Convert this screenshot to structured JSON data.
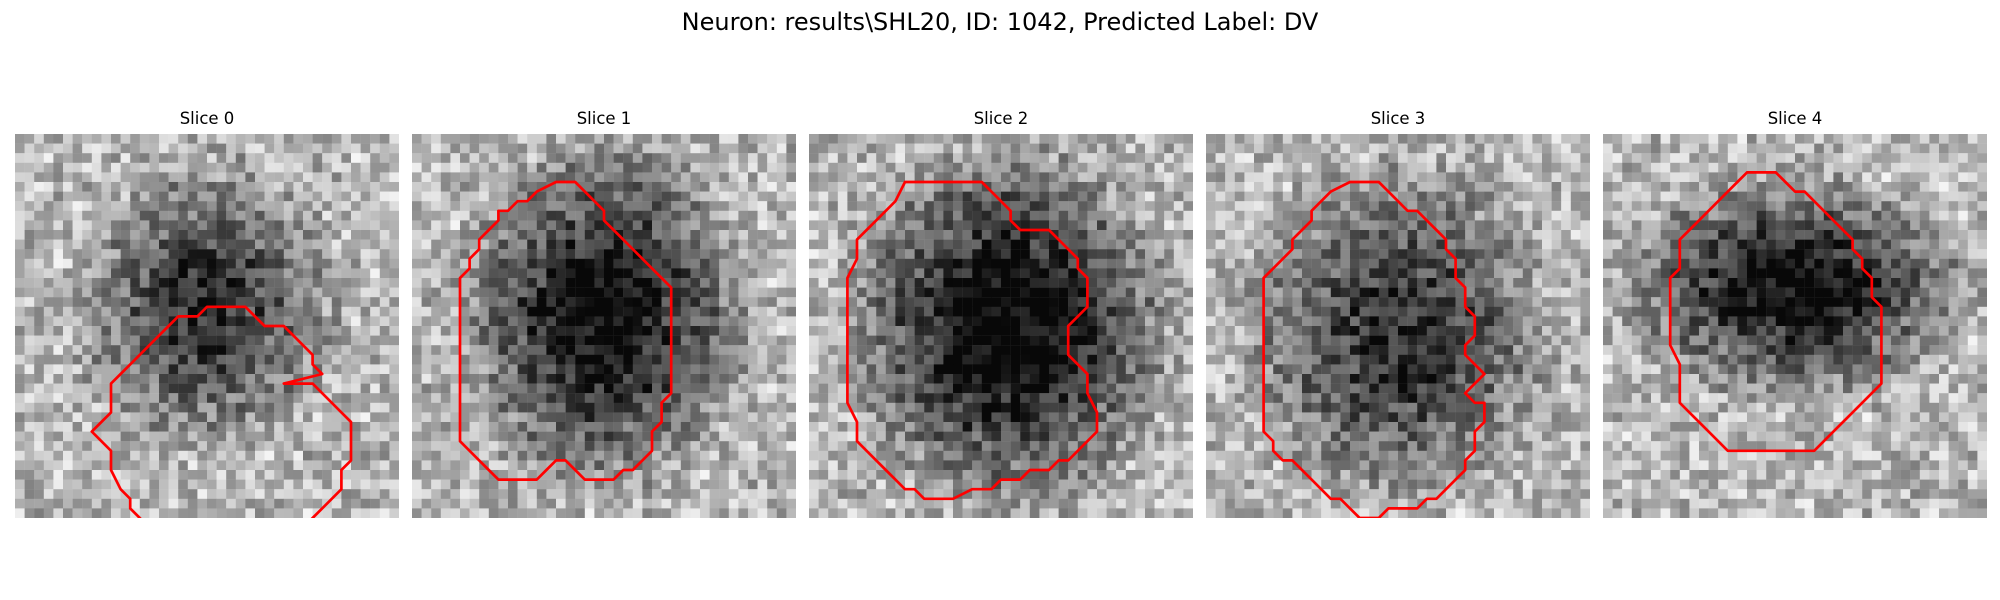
{
  "figure": {
    "title": "Neuron: results\\SHL20, ID: 1042, Predicted Label: DV"
  },
  "panels": [
    {
      "title": "Slice 0",
      "seed": 11,
      "blob": [
        0.5,
        0.45,
        0.3,
        0.34
      ],
      "darkness": 0.55,
      "contour": [
        [
          28,
          26
        ],
        [
          31,
          26
        ],
        [
          32,
          27
        ],
        [
          33,
          28
        ],
        [
          34,
          29
        ],
        [
          35,
          30
        ],
        [
          35,
          32
        ],
        [
          35,
          34
        ],
        [
          34,
          35
        ],
        [
          34,
          37
        ],
        [
          33,
          38
        ],
        [
          32,
          39
        ],
        [
          31,
          40
        ],
        [
          30,
          41
        ],
        [
          29,
          42
        ],
        [
          28,
          43
        ],
        [
          28,
          44
        ],
        [
          27,
          45
        ],
        [
          26,
          45
        ],
        [
          25,
          46
        ],
        [
          24,
          47
        ],
        [
          21,
          47
        ],
        [
          20,
          46
        ],
        [
          18,
          46
        ],
        [
          17,
          45
        ],
        [
          16,
          44
        ],
        [
          15,
          43
        ],
        [
          14,
          41
        ],
        [
          13,
          40
        ],
        [
          12,
          39
        ],
        [
          12,
          38
        ],
        [
          11,
          37
        ],
        [
          10,
          35
        ],
        [
          10,
          33
        ],
        [
          9,
          32
        ],
        [
          8,
          31
        ],
        [
          9,
          30
        ],
        [
          10,
          29
        ],
        [
          10,
          26
        ],
        [
          11,
          25
        ],
        [
          12,
          24
        ],
        [
          13,
          23
        ],
        [
          14,
          22
        ],
        [
          15,
          21
        ],
        [
          16,
          20
        ],
        [
          17,
          19
        ],
        [
          19,
          19
        ],
        [
          20,
          18
        ],
        [
          24,
          18
        ],
        [
          25,
          19
        ],
        [
          26,
          20
        ],
        [
          28,
          20
        ],
        [
          29,
          21
        ],
        [
          30,
          22
        ],
        [
          31,
          23
        ],
        [
          31,
          24
        ],
        [
          32,
          25
        ]
      ]
    },
    {
      "title": "Slice 1",
      "seed": 23,
      "blob": [
        0.5,
        0.47,
        0.34,
        0.4
      ],
      "darkness": 0.7,
      "contour": [
        [
          12,
          7
        ],
        [
          13,
          6
        ],
        [
          15,
          5
        ],
        [
          17,
          5
        ],
        [
          18,
          6
        ],
        [
          19,
          7
        ],
        [
          20,
          8
        ],
        [
          20,
          9
        ],
        [
          21,
          10
        ],
        [
          22,
          11
        ],
        [
          23,
          12
        ],
        [
          24,
          13
        ],
        [
          25,
          14
        ],
        [
          26,
          15
        ],
        [
          27,
          16
        ],
        [
          27,
          19
        ],
        [
          27,
          22
        ],
        [
          27,
          25
        ],
        [
          27,
          27
        ],
        [
          26,
          28
        ],
        [
          26,
          30
        ],
        [
          25,
          31
        ],
        [
          25,
          33
        ],
        [
          24,
          34
        ],
        [
          23,
          35
        ],
        [
          22,
          35
        ],
        [
          21,
          36
        ],
        [
          18,
          36
        ],
        [
          17,
          35
        ],
        [
          16,
          34
        ],
        [
          15,
          34
        ],
        [
          14,
          35
        ],
        [
          13,
          36
        ],
        [
          9,
          36
        ],
        [
          8,
          35
        ],
        [
          7,
          34
        ],
        [
          6,
          33
        ],
        [
          5,
          32
        ],
        [
          5,
          29
        ],
        [
          5,
          26
        ],
        [
          5,
          23
        ],
        [
          5,
          20
        ],
        [
          5,
          17
        ],
        [
          5,
          15
        ],
        [
          6,
          14
        ],
        [
          6,
          13
        ],
        [
          7,
          12
        ],
        [
          7,
          11
        ],
        [
          8,
          10
        ],
        [
          9,
          9
        ],
        [
          9,
          8
        ],
        [
          10,
          8
        ],
        [
          11,
          7
        ]
      ]
    },
    {
      "title": "Slice 2",
      "seed": 37,
      "blob": [
        0.52,
        0.5,
        0.38,
        0.42
      ],
      "darkness": 0.75,
      "contour": [
        [
          10,
          5
        ],
        [
          12,
          5
        ],
        [
          15,
          5
        ],
        [
          18,
          5
        ],
        [
          19,
          6
        ],
        [
          20,
          7
        ],
        [
          21,
          8
        ],
        [
          21,
          9
        ],
        [
          22,
          10
        ],
        [
          23,
          10
        ],
        [
          25,
          10
        ],
        [
          26,
          11
        ],
        [
          27,
          12
        ],
        [
          28,
          13
        ],
        [
          28,
          14
        ],
        [
          29,
          15
        ],
        [
          29,
          18
        ],
        [
          28,
          19
        ],
        [
          27,
          20
        ],
        [
          27,
          23
        ],
        [
          28,
          24
        ],
        [
          29,
          25
        ],
        [
          29,
          27
        ],
        [
          30,
          29
        ],
        [
          30,
          31
        ],
        [
          29,
          32
        ],
        [
          28,
          33
        ],
        [
          27,
          34
        ],
        [
          26,
          34
        ],
        [
          25,
          35
        ],
        [
          23,
          35
        ],
        [
          22,
          36
        ],
        [
          20,
          36
        ],
        [
          19,
          37
        ],
        [
          17,
          37
        ],
        [
          15,
          38
        ],
        [
          12,
          38
        ],
        [
          11,
          37
        ],
        [
          10,
          37
        ],
        [
          9,
          36
        ],
        [
          8,
          35
        ],
        [
          7,
          34
        ],
        [
          6,
          33
        ],
        [
          5,
          32
        ],
        [
          5,
          30
        ],
        [
          4,
          28
        ],
        [
          4,
          26
        ],
        [
          4,
          24
        ],
        [
          4,
          21
        ],
        [
          4,
          19
        ],
        [
          4,
          17
        ],
        [
          4,
          15
        ],
        [
          5,
          13
        ],
        [
          5,
          11
        ],
        [
          6,
          10
        ],
        [
          7,
          9
        ],
        [
          8,
          8
        ],
        [
          9,
          7
        ]
      ]
    },
    {
      "title": "Slice 3",
      "seed": 53,
      "blob": [
        0.5,
        0.52,
        0.36,
        0.4
      ],
      "darkness": 0.55,
      "contour": [
        [
          13,
          6
        ],
        [
          15,
          5
        ],
        [
          18,
          5
        ],
        [
          19,
          6
        ],
        [
          20,
          7
        ],
        [
          21,
          8
        ],
        [
          22,
          8
        ],
        [
          23,
          9
        ],
        [
          24,
          10
        ],
        [
          25,
          11
        ],
        [
          25,
          12
        ],
        [
          26,
          13
        ],
        [
          26,
          15
        ],
        [
          27,
          16
        ],
        [
          27,
          18
        ],
        [
          28,
          19
        ],
        [
          28,
          21
        ],
        [
          27,
          22
        ],
        [
          27,
          23
        ],
        [
          28,
          24
        ],
        [
          29,
          25
        ],
        [
          28,
          26
        ],
        [
          27,
          27
        ],
        [
          28,
          28
        ],
        [
          29,
          28
        ],
        [
          29,
          30
        ],
        [
          28,
          31
        ],
        [
          28,
          33
        ],
        [
          27,
          34
        ],
        [
          27,
          35
        ],
        [
          26,
          36
        ],
        [
          25,
          37
        ],
        [
          24,
          38
        ],
        [
          23,
          38
        ],
        [
          22,
          39
        ],
        [
          19,
          39
        ],
        [
          18,
          40
        ],
        [
          16,
          40
        ],
        [
          15,
          39
        ],
        [
          14,
          38
        ],
        [
          13,
          38
        ],
        [
          12,
          37
        ],
        [
          11,
          36
        ],
        [
          10,
          35
        ],
        [
          9,
          34
        ],
        [
          8,
          34
        ],
        [
          7,
          33
        ],
        [
          7,
          32
        ],
        [
          6,
          31
        ],
        [
          6,
          29
        ],
        [
          6,
          27
        ],
        [
          6,
          24
        ],
        [
          6,
          21
        ],
        [
          6,
          18
        ],
        [
          6,
          15
        ],
        [
          7,
          14
        ],
        [
          8,
          13
        ],
        [
          9,
          12
        ],
        [
          9,
          11
        ],
        [
          10,
          10
        ],
        [
          11,
          9
        ],
        [
          11,
          8
        ],
        [
          12,
          7
        ]
      ]
    },
    {
      "title": "Slice 4",
      "seed": 71,
      "blob": [
        0.5,
        0.4,
        0.4,
        0.26
      ],
      "darkness": 0.7,
      "contour": [
        [
          15,
          4
        ],
        [
          18,
          4
        ],
        [
          19,
          5
        ],
        [
          20,
          6
        ],
        [
          21,
          6
        ],
        [
          22,
          7
        ],
        [
          23,
          8
        ],
        [
          24,
          9
        ],
        [
          25,
          10
        ],
        [
          26,
          11
        ],
        [
          26,
          12
        ],
        [
          27,
          13
        ],
        [
          27,
          14
        ],
        [
          28,
          15
        ],
        [
          28,
          17
        ],
        [
          29,
          18
        ],
        [
          29,
          20
        ],
        [
          29,
          22
        ],
        [
          29,
          24
        ],
        [
          29,
          26
        ],
        [
          28,
          27
        ],
        [
          27,
          28
        ],
        [
          26,
          29
        ],
        [
          25,
          30
        ],
        [
          24,
          31
        ],
        [
          23,
          32
        ],
        [
          22,
          33
        ],
        [
          20,
          33
        ],
        [
          18,
          33
        ],
        [
          16,
          33
        ],
        [
          14,
          33
        ],
        [
          13,
          33
        ],
        [
          12,
          32
        ],
        [
          11,
          31
        ],
        [
          10,
          30
        ],
        [
          9,
          29
        ],
        [
          8,
          28
        ],
        [
          8,
          26
        ],
        [
          8,
          24
        ],
        [
          7,
          22
        ],
        [
          7,
          20
        ],
        [
          7,
          17
        ],
        [
          7,
          15
        ],
        [
          8,
          14
        ],
        [
          8,
          11
        ],
        [
          9,
          10
        ],
        [
          10,
          9
        ],
        [
          11,
          8
        ],
        [
          12,
          7
        ],
        [
          13,
          6
        ],
        [
          14,
          5
        ]
      ]
    }
  ],
  "colors": {
    "contour": "#ff0000"
  }
}
